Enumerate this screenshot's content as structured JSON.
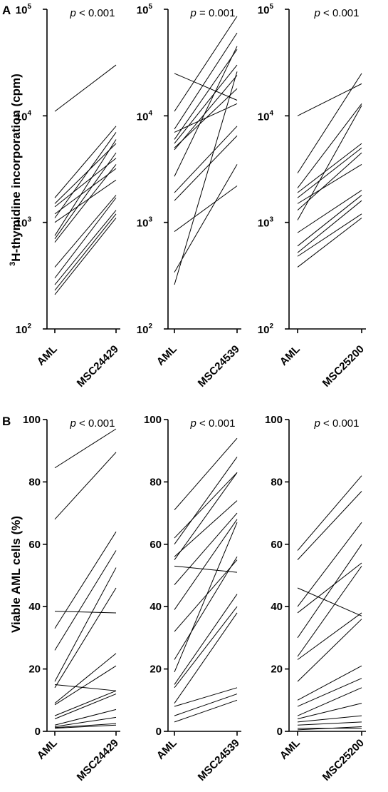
{
  "panels": {
    "A": {
      "letter": "A",
      "ylabel_sup": "3",
      "ylabel": "H-thymidine incorporation (cpm)",
      "scale": "log",
      "ylim": [
        100,
        100000
      ],
      "yticks": [
        {
          "base": "10",
          "exp": "5"
        },
        {
          "base": "10",
          "exp": "4"
        },
        {
          "base": "10",
          "exp": "3"
        },
        {
          "base": "10",
          "exp": "2"
        }
      ]
    },
    "B": {
      "letter": "B",
      "ylabel": "Viable AML cells (%)",
      "scale": "linear",
      "ylim": [
        0,
        100
      ],
      "yticks": [
        "100",
        "80",
        "60",
        "40",
        "20",
        "0"
      ]
    }
  },
  "chart_data": [
    {
      "type": "line",
      "panel": "A",
      "scale": "log",
      "ylim": [
        100,
        100000
      ],
      "categories": [
        "AML",
        "MSC24429"
      ],
      "p_label": "p",
      "p_rest": " < 0.001",
      "pairs": [
        [
          11000,
          30000
        ],
        [
          1700,
          8000
        ],
        [
          1500,
          5500
        ],
        [
          1400,
          4000
        ],
        [
          1200,
          3200
        ],
        [
          1100,
          7000
        ],
        [
          1000,
          2500
        ],
        [
          750,
          6000
        ],
        [
          700,
          4500
        ],
        [
          650,
          3500
        ],
        [
          380,
          1800
        ],
        [
          300,
          1700
        ],
        [
          260,
          1300
        ],
        [
          230,
          1200
        ],
        [
          210,
          1100
        ]
      ]
    },
    {
      "type": "line",
      "panel": "A",
      "scale": "log",
      "ylim": [
        100,
        100000
      ],
      "categories": [
        "AML",
        "MSC24539"
      ],
      "p_label": "p",
      "p_rest": " = 0.001",
      "pairs": [
        [
          25000,
          14000
        ],
        [
          11000,
          86000
        ],
        [
          7500,
          60000
        ],
        [
          7000,
          13000
        ],
        [
          6000,
          42000
        ],
        [
          5500,
          30000
        ],
        [
          5000,
          18000
        ],
        [
          4800,
          24000
        ],
        [
          2700,
          45000
        ],
        [
          1900,
          8000
        ],
        [
          1600,
          6500
        ],
        [
          820,
          2200
        ],
        [
          340,
          3500
        ],
        [
          260,
          26000
        ]
      ]
    },
    {
      "type": "line",
      "panel": "A",
      "scale": "log",
      "ylim": [
        100,
        100000
      ],
      "categories": [
        "AML",
        "MSC25200"
      ],
      "p_label": "p",
      "p_rest": " < 0.001",
      "pairs": [
        [
          10000,
          20000
        ],
        [
          2900,
          25000
        ],
        [
          2100,
          13000
        ],
        [
          1900,
          5500
        ],
        [
          1700,
          5000
        ],
        [
          1500,
          3500
        ],
        [
          1300,
          4500
        ],
        [
          1050,
          12500
        ],
        [
          800,
          2000
        ],
        [
          600,
          1800
        ],
        [
          520,
          1600
        ],
        [
          480,
          1200
        ],
        [
          380,
          1100
        ]
      ]
    },
    {
      "type": "line",
      "panel": "B",
      "scale": "linear",
      "ylim": [
        0,
        100
      ],
      "categories": [
        "AML",
        "MSC24429"
      ],
      "p_label": "p",
      "p_rest": " < 0.001",
      "pairs": [
        [
          84.5,
          97
        ],
        [
          68,
          89.5
        ],
        [
          38.5,
          38
        ],
        [
          33,
          64
        ],
        [
          26,
          58
        ],
        [
          16,
          52.5
        ],
        [
          15,
          13
        ],
        [
          14,
          46
        ],
        [
          9,
          25
        ],
        [
          8.5,
          21
        ],
        [
          5,
          13
        ],
        [
          4,
          12
        ],
        [
          2,
          7
        ],
        [
          1.5,
          4.5
        ],
        [
          1.2,
          2.5
        ],
        [
          1,
          2
        ]
      ]
    },
    {
      "type": "line",
      "panel": "B",
      "scale": "linear",
      "ylim": [
        0,
        100
      ],
      "categories": [
        "AML",
        "MSC24539"
      ],
      "p_label": "p",
      "p_rest": " < 0.001",
      "pairs": [
        [
          71,
          94
        ],
        [
          62,
          83
        ],
        [
          60,
          88
        ],
        [
          56,
          74
        ],
        [
          55,
          83
        ],
        [
          53,
          51
        ],
        [
          47,
          70
        ],
        [
          39,
          68
        ],
        [
          32,
          55
        ],
        [
          23,
          56
        ],
        [
          19,
          67
        ],
        [
          15,
          44
        ],
        [
          14,
          40
        ],
        [
          9,
          38
        ],
        [
          8,
          14
        ],
        [
          5,
          12
        ],
        [
          3,
          10
        ]
      ]
    },
    {
      "type": "line",
      "panel": "B",
      "scale": "linear",
      "ylim": [
        0,
        100
      ],
      "categories": [
        "AML",
        "MSC25200"
      ],
      "p_label": "p",
      "p_rest": " < 0.001",
      "pairs": [
        [
          58,
          82
        ],
        [
          55,
          77
        ],
        [
          46,
          37
        ],
        [
          40,
          67
        ],
        [
          38,
          54
        ],
        [
          30,
          60
        ],
        [
          24,
          53
        ],
        [
          23,
          38
        ],
        [
          16,
          36
        ],
        [
          10,
          21
        ],
        [
          8,
          17
        ],
        [
          5,
          14
        ],
        [
          4,
          9
        ],
        [
          3,
          5
        ],
        [
          2,
          3
        ],
        [
          1,
          1
        ],
        [
          0.5,
          1.5
        ]
      ]
    }
  ]
}
